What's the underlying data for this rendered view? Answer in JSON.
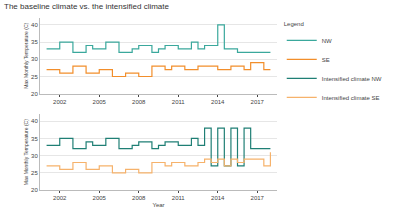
{
  "chart_data": [
    {
      "type": "line",
      "title": "The baseline climate vs. the intensified climate",
      "legend": "upper right",
      "legend_title": "Legend",
      "line_style": "step",
      "y_label": "Max Monthly Temperature (C)",
      "x": [
        2001,
        2001.5,
        2002,
        2002.5,
        2003,
        2003.5,
        2004,
        2004.5,
        2005,
        2005.5,
        2006,
        2006.5,
        2007,
        2007.5,
        2008,
        2008.5,
        2009,
        2009.5,
        2010,
        2010.5,
        2011,
        2011.5,
        2012,
        2012.5,
        2013,
        2013.5,
        2014,
        2014.5,
        2015,
        2015.5,
        2016,
        2016.5,
        2017,
        2017.5,
        2018
      ],
      "series": [
        {
          "name": "NW",
          "color": "#3aa89c",
          "values": [
            33,
            33,
            35,
            35,
            32,
            32,
            34,
            33,
            33,
            35,
            35,
            32,
            32,
            33,
            34,
            34,
            32,
            33,
            34,
            34,
            33,
            33,
            35,
            33,
            34,
            34,
            40,
            33,
            33,
            32,
            32,
            32,
            32,
            32,
            32
          ]
        },
        {
          "name": "SE",
          "color": "#f28e2b",
          "values": [
            27,
            27,
            26,
            26,
            28,
            28,
            26,
            26,
            27,
            27,
            25,
            25,
            26,
            26,
            25,
            25,
            28,
            28,
            27,
            28,
            28,
            27,
            27,
            28,
            28,
            28,
            27,
            27,
            28,
            28,
            27,
            29,
            29,
            27,
            27
          ]
        }
      ],
      "xlim": [
        2000.5,
        2018.5
      ],
      "xticks": [
        2002,
        2005,
        2008,
        2011,
        2014,
        2017
      ],
      "ylim": [
        20,
        42
      ],
      "yticks": [
        20,
        25,
        30,
        35,
        40
      ],
      "grid": true
    },
    {
      "type": "line",
      "line_style": "step",
      "x_label": "Year",
      "y_label": "Max Monthly Temperature (C)",
      "x": [
        2001,
        2001.5,
        2002,
        2002.5,
        2003,
        2003.5,
        2004,
        2004.5,
        2005,
        2005.5,
        2006,
        2006.5,
        2007,
        2007.5,
        2008,
        2008.5,
        2009,
        2009.5,
        2010,
        2010.5,
        2011,
        2011.5,
        2012,
        2012.5,
        2013,
        2013.5,
        2014,
        2014.5,
        2015,
        2015.5,
        2016,
        2016.5,
        2017,
        2017.5,
        2018
      ],
      "series": [
        {
          "name": "Intensified climate NW",
          "color": "#1f7f75",
          "values": [
            33,
            33,
            35,
            35,
            32,
            32,
            34,
            33,
            33,
            35,
            35,
            32,
            32,
            33,
            34,
            34,
            32,
            33,
            34,
            34,
            33,
            33,
            35,
            33,
            38,
            27,
            38,
            27,
            38,
            27,
            38,
            32,
            32,
            32,
            32
          ]
        },
        {
          "name": "Intensified climate SE",
          "color": "#f6b26b",
          "values": [
            27,
            27,
            26,
            26,
            28,
            28,
            26,
            26,
            27,
            27,
            25,
            25,
            26,
            26,
            25,
            25,
            28,
            28,
            27,
            28,
            28,
            27,
            27,
            28,
            29,
            28,
            29,
            27,
            29,
            28,
            29,
            29,
            29,
            27,
            31
          ]
        }
      ],
      "xlim": [
        2000.5,
        2018.5
      ],
      "xticks": [
        2002,
        2005,
        2008,
        2011,
        2014,
        2017
      ],
      "ylim": [
        20,
        42
      ],
      "yticks": [
        20,
        25,
        30,
        35,
        40
      ],
      "grid": true
    }
  ]
}
